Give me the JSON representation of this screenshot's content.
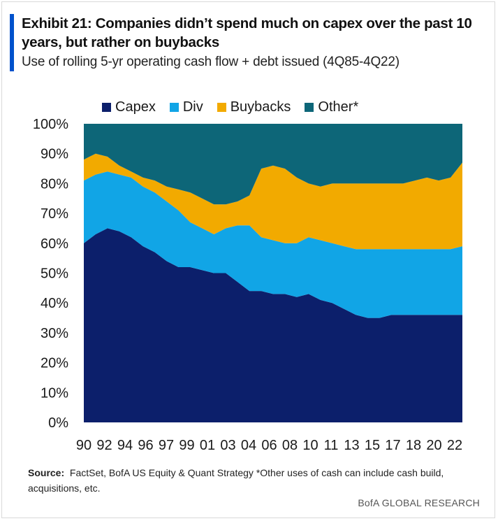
{
  "header": {
    "title": "Exhibit 21: Companies didn’t spend much on capex over the past 10 years, but rather on buybacks",
    "subtitle": "Use of rolling 5-yr operating cash flow + debt issued (4Q85-4Q22)"
  },
  "footer": {
    "source_label": "Source:",
    "source_text": "FactSet, BofA US Equity & Quant Strategy *Other uses of cash can include cash build, acquisitions, etc.",
    "credit": "BofA GLOBAL RESEARCH"
  },
  "colors": {
    "capex": "#0c1f6b",
    "div": "#11a5e6",
    "buybacks": "#f2aa00",
    "other": "#0d6678"
  },
  "chart_data": {
    "type": "area",
    "stacked": true,
    "title": "Use of rolling 5-yr operating cash flow + debt issued (4Q85-4Q22)",
    "xlabel": "",
    "ylabel": "",
    "ylim": [
      0,
      100
    ],
    "yticks": [
      "0%",
      "10%",
      "20%",
      "30%",
      "40%",
      "50%",
      "60%",
      "70%",
      "80%",
      "90%",
      "100%"
    ],
    "xticks": [
      "90",
      "92",
      "94",
      "96",
      "97",
      "99",
      "01",
      "03",
      "04",
      "06",
      "08",
      "10",
      "11",
      "13",
      "15",
      "17",
      "18",
      "20",
      "22"
    ],
    "legend_position": "top",
    "x": [
      1990,
      1991,
      1992,
      1993,
      1994,
      1995,
      1996,
      1997,
      1998,
      1999,
      2000,
      2001,
      2002,
      2003,
      2004,
      2005,
      2006,
      2007,
      2008,
      2009,
      2010,
      2011,
      2012,
      2013,
      2014,
      2015,
      2016,
      2017,
      2018,
      2019,
      2020,
      2021,
      2022
    ],
    "series": [
      {
        "name": "Capex",
        "values": [
          60,
          63,
          65,
          64,
          62,
          59,
          57,
          54,
          52,
          52,
          51,
          50,
          50,
          47,
          44,
          44,
          43,
          43,
          42,
          43,
          41,
          40,
          38,
          36,
          35,
          35,
          36,
          36,
          36,
          36,
          36,
          36,
          36
        ]
      },
      {
        "name": "Div",
        "values": [
          21,
          20,
          19,
          19,
          20,
          20,
          20,
          20,
          19,
          15,
          14,
          13,
          15,
          19,
          22,
          18,
          18,
          17,
          18,
          19,
          20,
          20,
          21,
          22,
          23,
          23,
          22,
          22,
          22,
          22,
          22,
          22,
          23
        ]
      },
      {
        "name": "Buybacks",
        "values": [
          7,
          7,
          5,
          3,
          2,
          3,
          4,
          5,
          7,
          10,
          10,
          10,
          8,
          8,
          10,
          23,
          25,
          25,
          22,
          18,
          18,
          20,
          21,
          22,
          22,
          22,
          22,
          22,
          23,
          24,
          23,
          24,
          28
        ]
      },
      {
        "name": "Other*",
        "values": [
          12,
          10,
          11,
          14,
          16,
          18,
          19,
          21,
          22,
          23,
          25,
          27,
          27,
          26,
          24,
          15,
          14,
          15,
          18,
          20,
          21,
          20,
          20,
          20,
          20,
          20,
          20,
          20,
          19,
          18,
          19,
          18,
          13
        ]
      }
    ]
  }
}
